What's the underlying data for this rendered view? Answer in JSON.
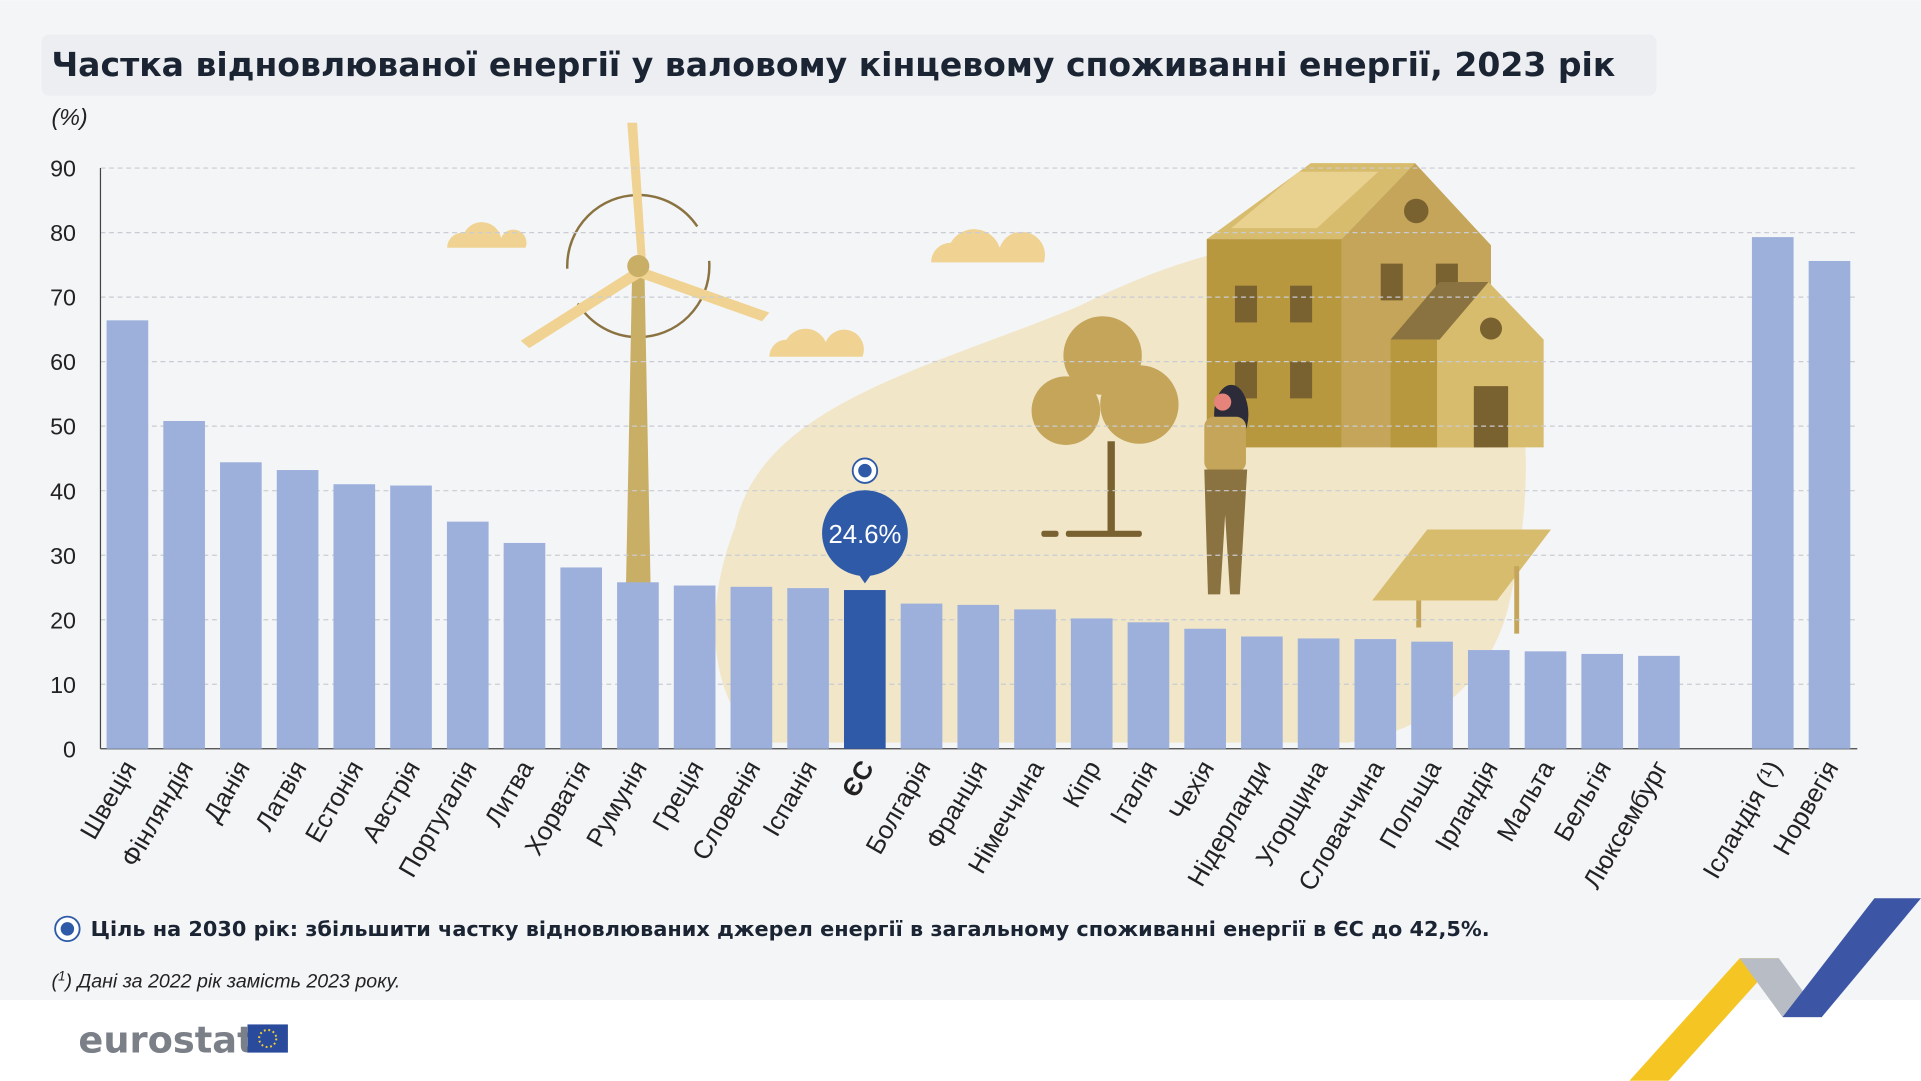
{
  "chart_data": {
    "type": "bar",
    "title": "Частка відновлюваної енергії у валовому кінцевому споживанні енергії, 2023 рік",
    "unit_label": "(%)",
    "ylim": [
      0,
      90
    ],
    "yticks": [
      0,
      10,
      20,
      30,
      40,
      50,
      60,
      70,
      80,
      90
    ],
    "grid": true,
    "categories": [
      "Швеція",
      "Фінляндія",
      "Данія",
      "Латвія",
      "Естонія",
      "Австрія",
      "Португалія",
      "Литва",
      "Хорватія",
      "Румунія",
      "Греція",
      "Словенія",
      "Іспанія",
      "ЄС",
      "Болгарія",
      "Франція",
      "Німеччина",
      "Кіпр",
      "Італія",
      "Чехія",
      "Нідерланди",
      "Угорщина",
      "Словаччина",
      "Польща",
      "Ірландія",
      "Мальта",
      "Бельгія",
      "Люксембург",
      "Ісландія (¹)",
      "Норвегія"
    ],
    "values": [
      66.4,
      50.8,
      44.4,
      43.2,
      41.0,
      40.8,
      35.2,
      31.9,
      28.1,
      25.8,
      25.3,
      25.1,
      24.9,
      24.6,
      22.5,
      22.3,
      21.6,
      20.2,
      19.6,
      18.6,
      17.4,
      17.1,
      17.0,
      16.6,
      15.3,
      15.1,
      14.7,
      14.4,
      79.3,
      75.6
    ],
    "highlight": "ЄС",
    "highlight_label": "24.6%",
    "colors": {
      "bar": "#9db0dc",
      "highlight": "#2f5aa8",
      "illustration": "#c4a55a"
    }
  },
  "target_note": "Ціль на 2030 рік: збільшити частку відновлюваних джерел енергії в загальному споживанні енергії в ЄС до 42,5%.",
  "footnote_mark": "1",
  "footnote": "Дані за 2022 рік замість 2023 року.",
  "logo": {
    "text": "eurostat"
  }
}
